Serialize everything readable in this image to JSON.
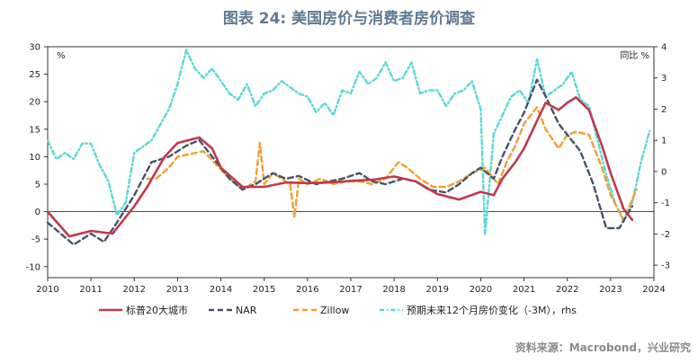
{
  "title": "图表 24: 美国房价与消费者房价调查",
  "source": "资料来源：Macrobond，兴业研究",
  "chart_data": {
    "type": "line",
    "left_unit": "%",
    "right_unit": "同比 %",
    "x_ticks": [
      "2010",
      "2011",
      "2012",
      "2013",
      "2014",
      "2015",
      "2016",
      "2017",
      "2018",
      "2019",
      "2020",
      "2021",
      "2022",
      "2023",
      "2024"
    ],
    "xlim": [
      2010.0,
      2024.0
    ],
    "ylim_left": [
      -12,
      30
    ],
    "yticks_left": [
      -10,
      -5,
      0,
      5,
      10,
      15,
      20,
      25,
      30
    ],
    "ylim_right": [
      -3.4,
      4.0
    ],
    "yticks_right": [
      -3,
      -2,
      -1,
      0,
      1,
      2,
      3,
      4
    ],
    "series": [
      {
        "name": "标普20大城市",
        "color": "#c0394d",
        "dash": "",
        "axis": "left",
        "x": [
          2010.0,
          2010.5,
          2011.0,
          2011.5,
          2012.0,
          2012.3,
          2012.7,
          2013.0,
          2013.5,
          2013.8,
          2014.0,
          2014.5,
          2015.0,
          2015.5,
          2016.0,
          2016.5,
          2017.0,
          2017.5,
          2018.0,
          2018.5,
          2019.0,
          2019.5,
          2020.0,
          2020.3,
          2020.5,
          2020.8,
          2021.0,
          2021.3,
          2021.5,
          2021.8,
          2022.0,
          2022.2,
          2022.5,
          2022.8,
          2023.0,
          2023.3,
          2023.5
        ],
        "y": [
          0,
          -4.5,
          -3.5,
          -4,
          1,
          4.5,
          10,
          12.5,
          13.5,
          11.5,
          8,
          4.5,
          4.5,
          5.3,
          5.2,
          5.3,
          5.6,
          5.8,
          6.4,
          5.5,
          3.2,
          2.2,
          3.6,
          3,
          6,
          9,
          11.5,
          16.5,
          19.8,
          18.5,
          19.8,
          20.8,
          18.5,
          12,
          7,
          0.5,
          -1.5
        ]
      },
      {
        "name": "NAR",
        "color": "#44546a",
        "dash": "6,4",
        "axis": "left",
        "x": [
          2010.0,
          2010.3,
          2010.6,
          2011.0,
          2011.3,
          2011.6,
          2012.0,
          2012.4,
          2012.8,
          2013.2,
          2013.5,
          2013.8,
          2014.2,
          2014.5,
          2014.8,
          2015.2,
          2015.5,
          2015.8,
          2016.2,
          2016.5,
          2016.8,
          2017.2,
          2017.5,
          2017.8,
          2018.2,
          2018.5,
          2018.8,
          2019.2,
          2019.5,
          2019.8,
          2020.0,
          2020.3,
          2020.5,
          2020.8,
          2021.0,
          2021.3,
          2021.5,
          2021.8,
          2022.0,
          2022.3,
          2022.6,
          2022.9,
          2023.2,
          2023.5
        ],
        "y": [
          -2,
          -4,
          -6,
          -4,
          -5.5,
          -2,
          3,
          9,
          10,
          12,
          13,
          10,
          6,
          4,
          5,
          7,
          6,
          6.5,
          5,
          5.5,
          6,
          7,
          5.5,
          5,
          6,
          5.5,
          4,
          3.5,
          5,
          7,
          8,
          6,
          10,
          15,
          18,
          24,
          21,
          16,
          14,
          11,
          5,
          -3,
          -3,
          1
        ]
      },
      {
        "name": "Zillow",
        "color": "#f0a030",
        "dash": "6,4",
        "axis": "left",
        "x": [
          2012.3,
          2012.5,
          2012.8,
          2013.0,
          2013.3,
          2013.6,
          2013.9,
          2014.2,
          2014.5,
          2014.8,
          2014.9,
          2015.0,
          2015.2,
          2015.4,
          2015.6,
          2015.7,
          2015.8,
          2016.0,
          2016.3,
          2016.6,
          2016.9,
          2017.2,
          2017.5,
          2017.8,
          2018.1,
          2018.3,
          2018.6,
          2018.9,
          2019.2,
          2019.5,
          2019.8,
          2020.1,
          2020.4,
          2020.6,
          2020.8,
          2021.0,
          2021.3,
          2021.5,
          2021.8,
          2022.0,
          2022.2,
          2022.5,
          2022.8,
          2023.0,
          2023.3,
          2023.6
        ],
        "y": [
          6,
          6,
          8,
          10,
          10.5,
          11,
          8.5,
          6,
          4,
          5.5,
          12.5,
          5,
          7,
          6,
          5,
          -1,
          6,
          5,
          6,
          5,
          5.5,
          5.5,
          5,
          6,
          9,
          8,
          6,
          4.5,
          4.5,
          5.5,
          7,
          8,
          5,
          9,
          12,
          16,
          19,
          15,
          11.5,
          14,
          14.5,
          14,
          8,
          3,
          -1.5,
          4
        ]
      },
      {
        "name": "预期未来12个月房价变化（-3M），rhs",
        "color": "#5cd6d6",
        "dash": "5,3,1.5,3",
        "axis": "right",
        "x": [
          2010.0,
          2010.2,
          2010.4,
          2010.6,
          2010.8,
          2011.0,
          2011.2,
          2011.4,
          2011.6,
          2011.8,
          2012.0,
          2012.2,
          2012.4,
          2012.6,
          2012.8,
          2013.0,
          2013.2,
          2013.4,
          2013.6,
          2013.8,
          2014.0,
          2014.2,
          2014.4,
          2014.6,
          2014.8,
          2015.0,
          2015.2,
          2015.4,
          2015.6,
          2015.8,
          2016.0,
          2016.2,
          2016.4,
          2016.6,
          2016.8,
          2017.0,
          2017.2,
          2017.4,
          2017.6,
          2017.8,
          2018.0,
          2018.2,
          2018.4,
          2018.6,
          2018.8,
          2019.0,
          2019.2,
          2019.4,
          2019.6,
          2019.8,
          2020.0,
          2020.1,
          2020.2,
          2020.3,
          2020.5,
          2020.7,
          2020.9,
          2021.1,
          2021.3,
          2021.5,
          2021.7,
          2021.9,
          2022.1,
          2022.3,
          2022.5,
          2022.7,
          2022.9,
          2023.1,
          2023.3,
          2023.5,
          2023.7,
          2023.9
        ],
        "y": [
          1.0,
          0.4,
          0.6,
          0.4,
          0.9,
          0.9,
          0.2,
          -0.3,
          -1.4,
          -1.0,
          0.6,
          0.8,
          1.0,
          1.5,
          2.0,
          2.8,
          3.9,
          3.3,
          3.0,
          3.3,
          2.9,
          2.5,
          2.3,
          2.8,
          2.1,
          2.5,
          2.6,
          2.9,
          2.7,
          2.5,
          2.4,
          1.9,
          2.2,
          1.8,
          2.6,
          2.5,
          3.2,
          2.8,
          3.0,
          3.5,
          2.9,
          3.0,
          3.5,
          2.5,
          2.6,
          2.6,
          2.1,
          2.5,
          2.6,
          2.9,
          2.0,
          -2.0,
          -0.4,
          1.2,
          1.8,
          2.4,
          2.6,
          2.2,
          3.6,
          2.4,
          2.6,
          2.8,
          3.2,
          2.3,
          2.1,
          1.0,
          -0.1,
          -1.0,
          -1.6,
          -1.0,
          0.3,
          1.3
        ]
      }
    ]
  }
}
